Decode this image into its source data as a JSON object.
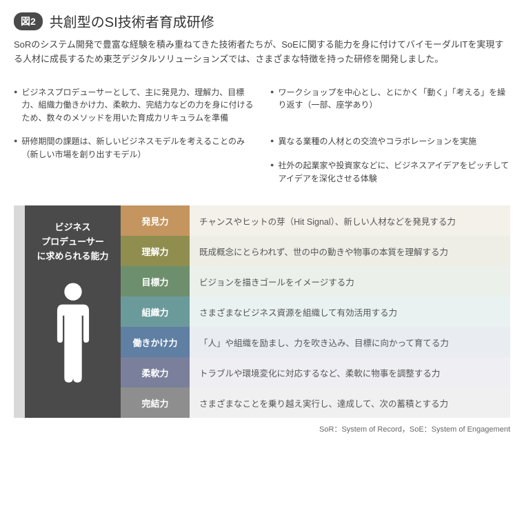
{
  "figure_badge": "図2",
  "title": "共創型のSI技術者育成研修",
  "intro": "SoRのシステム開発で豊富な経験を積み重ねてきた技術者たちが、SoEに関する能力を身に付けてバイモーダルITを実現する人材に成長するため東芝デジタルソリューションズでは、さまざまな特徴を持った研修を開発しました。",
  "bullets": {
    "left": [
      "ビジネスプロデューサーとして、主に発見力、理解力、目標力、組織力働きかけ力、柔軟力、完結力などの力を身に付けるため、数々のメソッドを用いた育成カリキュラムを準備",
      "研修期間の課題は、新しいビジネスモデルを考えることのみ（新しい市場を創り出すモデル）"
    ],
    "right": [
      "ワークショップを中心とし、とにかく「動く」「考える」を繰り返す（一部、座学あり）",
      "異なる業種の人材との交流やコラボレーションを実施",
      "社外の起業家や投資家などに、ビジネスアイデアをピッチしてアイデアを深化させる体験"
    ]
  },
  "left_panel": {
    "line1": "ビジネス",
    "line2": "プロデューサー",
    "line3": "に求められる能力"
  },
  "abilities": [
    {
      "label": "発見力",
      "desc": "チャンスやヒットの芽（Hit Signal）、新しい人材などを発見する力",
      "label_bg": "#c4955f",
      "desc_bg": "#f4f0ea"
    },
    {
      "label": "理解力",
      "desc": "既成概念にとらわれず、世の中の動きや物事の本質を理解する力",
      "label_bg": "#8f8e4f",
      "desc_bg": "#eeeee7"
    },
    {
      "label": "目標力",
      "desc": "ビジョンを描きゴールをイメージする力",
      "label_bg": "#6d8f6d",
      "desc_bg": "#ebf0eb"
    },
    {
      "label": "組織力",
      "desc": "さまざまなビジネス資源を組織して有効活用する力",
      "label_bg": "#6b9a9a",
      "desc_bg": "#eaf1f1"
    },
    {
      "label": "働きかけ力",
      "desc": "「人」や組織を励まし、力を吹き込み、目標に向かって育てる力",
      "label_bg": "#5f7fa3",
      "desc_bg": "#e9edf2"
    },
    {
      "label": "柔軟力",
      "desc": "トラブルや環境変化に対応するなど、柔軟に物事を調整する力",
      "label_bg": "#7a7f9b",
      "desc_bg": "#eeeef3"
    },
    {
      "label": "完結力",
      "desc": "さまざまなことを乗り越え実行し、達成して、次の蓄積とする力",
      "label_bg": "#8e8e8e",
      "desc_bg": "#f0f0f0"
    }
  ],
  "footnote": "SoR：System of Record，SoE：System of Engagement",
  "colors": {
    "panel_bg": "#4a4a4a",
    "panel_border": "#d9d9d9"
  }
}
